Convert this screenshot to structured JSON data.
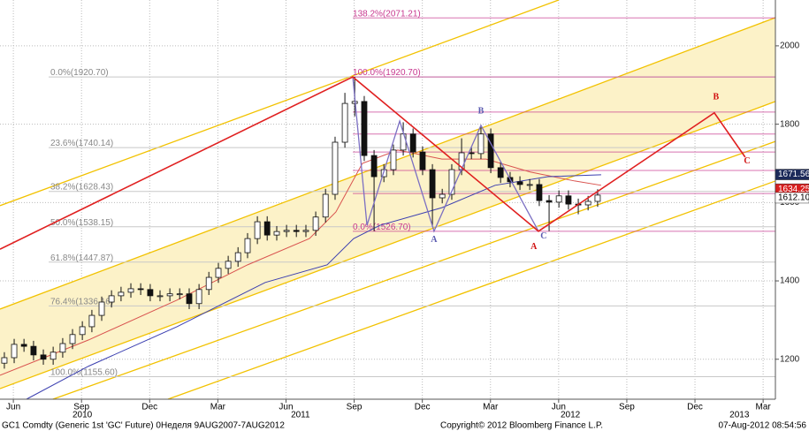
{
  "chart_data": {
    "type": "candlestick",
    "x": [
      2010.384,
      2010.42,
      2010.456,
      2010.491,
      2010.527,
      2010.563,
      2010.598,
      2010.634,
      2010.67,
      2010.705,
      2010.741,
      2010.777,
      2010.812,
      2010.848,
      2010.884,
      2010.919,
      2010.955,
      2010.991,
      2011.027,
      2011.062,
      2011.098,
      2011.134,
      2011.169,
      2011.205,
      2011.241,
      2011.276,
      2011.312,
      2011.348,
      2011.383,
      2011.419,
      2011.455,
      2011.49,
      2011.526,
      2011.562,
      2011.597,
      2011.633,
      2011.669,
      2011.704,
      2011.74,
      2011.776,
      2011.811,
      2011.847,
      2011.883,
      2011.918,
      2011.954,
      2011.99,
      2012.025,
      2012.061,
      2012.097,
      2012.132,
      2012.168,
      2012.204,
      2012.239,
      2012.275,
      2012.311,
      2012.346,
      2012.382,
      2012.418,
      2012.453,
      2012.489,
      2012.525,
      2012.56
    ],
    "open": [
      1190,
      1204,
      1238,
      1233,
      1211,
      1200,
      1218,
      1240,
      1263,
      1283,
      1312,
      1346,
      1362,
      1371,
      1380,
      1378,
      1362,
      1362,
      1367,
      1367,
      1342,
      1378,
      1409,
      1432,
      1450,
      1472,
      1508,
      1551,
      1517,
      1526,
      1529,
      1526,
      1529,
      1563,
      1621,
      1754,
      1853,
      1858,
      1720,
      1666,
      1684,
      1734,
      1775,
      1729,
      1684,
      1612,
      1621,
      1684,
      1727,
      1725,
      1775,
      1689,
      1664,
      1653,
      1646,
      1646,
      1605,
      1601,
      1617,
      1596,
      1594,
      1603
    ],
    "high": [
      1218,
      1252,
      1252,
      1247,
      1225,
      1232,
      1254,
      1277,
      1297,
      1326,
      1360,
      1376,
      1385,
      1394,
      1394,
      1392,
      1376,
      1381,
      1381,
      1381,
      1392,
      1423,
      1446,
      1464,
      1486,
      1522,
      1565,
      1565,
      1540,
      1543,
      1543,
      1543,
      1577,
      1635,
      1768,
      1880,
      1921,
      1872,
      1734,
      1698,
      1748,
      1805,
      1789,
      1743,
      1698,
      1635,
      1698,
      1764,
      1741,
      1792,
      1789,
      1703,
      1678,
      1667,
      1660,
      1660,
      1619,
      1631,
      1631,
      1610,
      1617,
      1634
    ],
    "low": [
      1176,
      1190,
      1219,
      1197,
      1186,
      1186,
      1204,
      1226,
      1249,
      1269,
      1298,
      1332,
      1348,
      1357,
      1364,
      1348,
      1348,
      1348,
      1353,
      1328,
      1328,
      1364,
      1395,
      1418,
      1436,
      1458,
      1494,
      1503,
      1503,
      1512,
      1512,
      1512,
      1515,
      1549,
      1607,
      1740,
      1820,
      1706,
      1527,
      1652,
      1670,
      1720,
      1715,
      1670,
      1540,
      1598,
      1607,
      1670,
      1711,
      1711,
      1675,
      1650,
      1639,
      1632,
      1632,
      1591,
      1527,
      1587,
      1582,
      1570,
      1580,
      1589
    ],
    "close": [
      1204,
      1238,
      1233,
      1211,
      1200,
      1218,
      1240,
      1263,
      1283,
      1312,
      1346,
      1362,
      1371,
      1380,
      1378,
      1362,
      1362,
      1367,
      1367,
      1342,
      1378,
      1409,
      1432,
      1450,
      1472,
      1508,
      1551,
      1517,
      1526,
      1529,
      1526,
      1529,
      1563,
      1621,
      1754,
      1853,
      1858,
      1720,
      1666,
      1684,
      1734,
      1775,
      1729,
      1684,
      1612,
      1621,
      1684,
      1727,
      1725,
      1775,
      1689,
      1664,
      1653,
      1646,
      1646,
      1605,
      1601,
      1617,
      1596,
      1594,
      1603,
      1619
    ],
    "xlim": [
      2010.368,
      2013.212
    ],
    "ylim": [
      1098,
      2117
    ],
    "yticks": [
      1200,
      1400,
      1600,
      1800,
      2000
    ],
    "xticks": [
      {
        "value": 2010.417,
        "label": "Jun"
      },
      {
        "value": 2010.667,
        "label": "Sep"
      },
      {
        "value": 2010.917,
        "label": "Dec"
      },
      {
        "value": 2011.167,
        "label": "Mar"
      },
      {
        "value": 2011.417,
        "label": "Jun"
      },
      {
        "value": 2011.667,
        "label": "Sep"
      },
      {
        "value": 2011.917,
        "label": "Dec"
      },
      {
        "value": 2012.167,
        "label": "Mar"
      },
      {
        "value": 2012.417,
        "label": "Jun"
      },
      {
        "value": 2012.667,
        "label": "Sep"
      },
      {
        "value": 2012.917,
        "label": "Dec"
      },
      {
        "value": 2013.167,
        "label": "Mar"
      }
    ],
    "year_labels": [
      {
        "value": 2010.67,
        "label": "2010"
      },
      {
        "value": 2011.47,
        "label": "2011"
      },
      {
        "value": 2012.46,
        "label": "2012"
      },
      {
        "value": 2013.08,
        "label": "2013"
      }
    ],
    "grid": true,
    "moving_averages": [
      {
        "color": "#d9534f",
        "x": [
          2010.368,
          2010.692,
          2011.017,
          2011.276,
          2011.503,
          2011.6,
          2011.697,
          2011.827,
          2011.989,
          2012.151,
          2012.313,
          2012.476,
          2012.573
        ],
        "values": [
          1159,
          1249,
          1351,
          1441,
          1508,
          1576,
          1700,
          1734,
          1711,
          1711,
          1678,
          1655,
          1644
        ]
      },
      {
        "color": "#3b3fb0",
        "x": [
          2010.465,
          2010.692,
          2011.017,
          2011.341,
          2011.568,
          2011.665,
          2011.762,
          2011.989,
          2012.184,
          2012.378,
          2012.573
        ],
        "values": [
          1098,
          1182,
          1283,
          1396,
          1441,
          1508,
          1542,
          1587,
          1644,
          1666,
          1671
        ]
      }
    ],
    "channels": [
      {
        "color": "#f2c200",
        "x": [
          2010.368,
          2012.417
        ],
        "values": [
          1592,
          2117
        ]
      },
      {
        "color": "#f2c200",
        "x": [
          2010.368,
          2013.212
        ],
        "values": [
          1328,
          2072
        ],
        "fill": "#fcf2c8"
      },
      {
        "color": "#f2c200",
        "x": [
          2010.368,
          2013.212
        ],
        "values": [
          1125,
          1858
        ]
      },
      {
        "color": "#f2c200",
        "x": [
          2010.562,
          2013.212
        ],
        "values": [
          1098,
          1756
        ]
      },
      {
        "color": "#f2c200",
        "x": [
          2010.984,
          2013.212
        ],
        "values": [
          1098,
          1655
        ]
      }
    ],
    "wave_red": {
      "color": "#e02020",
      "x": [
        2010.368,
        2011.662,
        2012.343,
        2012.988,
        2013.101
      ],
      "values": [
        1481,
        1920.7,
        1526.7,
        1829,
        1716
      ]
    },
    "wave_purple": {
      "color": "#7b6fc2",
      "x": [
        2011.662,
        2011.714,
        2011.834,
        2011.96,
        2012.132,
        2012.343
      ],
      "values": [
        1920.7,
        1542,
        1808,
        1526.7,
        1797,
        1526.7
      ]
    },
    "points": [
      {
        "label": "A",
        "color": "#d01010",
        "x": 2012.326,
        "value": 1486
      },
      {
        "label": "B",
        "color": "#d01010",
        "x": 2012.994,
        "value": 1869
      },
      {
        "label": "C",
        "color": "#d01010",
        "x": 2013.108,
        "value": 1705
      },
      {
        "label": "A",
        "color": "#5a5ab0",
        "x": 2011.96,
        "value": 1504
      },
      {
        "label": "B",
        "color": "#5a5ab0",
        "x": 2012.132,
        "value": 1833
      },
      {
        "label": "C",
        "color": "#5a5ab0",
        "x": 2012.362,
        "value": 1513
      }
    ],
    "fib_left": [
      {
        "value": 1920.7,
        "label": "0.0%(1920.70)"
      },
      {
        "value": 1740.14,
        "label": "23.6%(1740.14)"
      },
      {
        "value": 1628.43,
        "label": "38.2%(1628.43)"
      },
      {
        "value": 1538.15,
        "label": "50.0%(1538.15)"
      },
      {
        "value": 1447.87,
        "label": "61.8%(1447.87)"
      },
      {
        "value": 1336.16,
        "label": "76.4%(1336.16)"
      },
      {
        "value": 1155.6,
        "label": "100.0%(1155.60)"
      }
    ],
    "fib_right": {
      "start": 2011.662,
      "color": "#c8388f",
      "levels": [
        {
          "value": 2071.21,
          "label": "138.2%(2071.21)"
        },
        {
          "value": 1920.7,
          "label": "100.0%(1920.70)"
        },
        {
          "value": 1526.7,
          "label": "0.0%(1526.70)"
        }
      ],
      "lines": [
        1831,
        1775,
        1729,
        1682,
        1623
      ]
    },
    "price_tags": [
      {
        "value": 1671.56,
        "color": "#1c2a5a",
        "text_color": "#ffffff"
      },
      {
        "value": 1634.25,
        "color": "#d81e1e",
        "text_color": "#ffffff"
      },
      {
        "value": 1612.1,
        "label": "1612.10",
        "color": "#ffffff",
        "text_color": "#000000"
      }
    ],
    "footer_left": "GC1 Comdty (Generic 1st 'GC' Future) 0Неделя 9AUG2007-7AUG2012",
    "footer_center": "Copyright© 2012 Bloomberg Finance L.P.",
    "footer_right": "07-Aug-2012 08:54:56"
  }
}
